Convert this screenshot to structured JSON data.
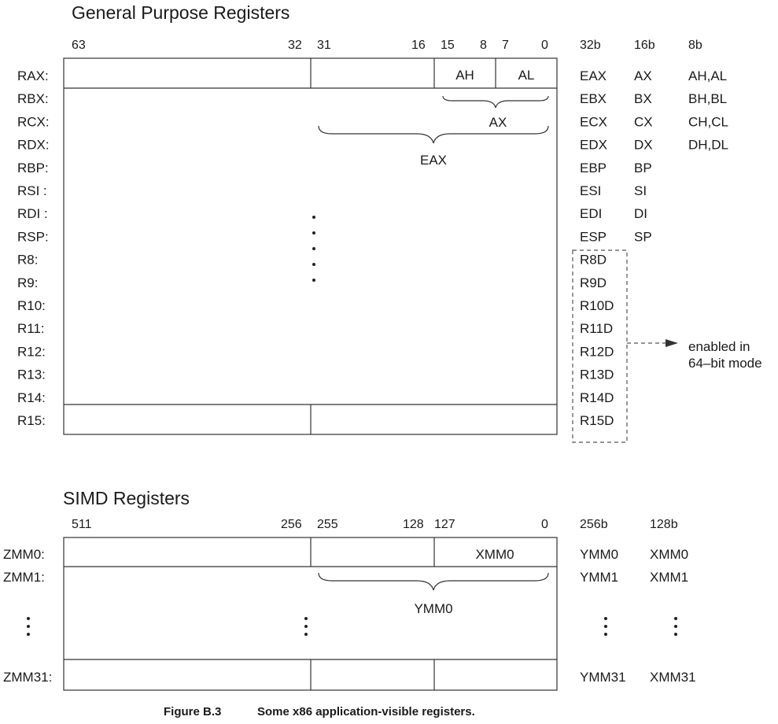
{
  "gpr": {
    "title": "General Purpose Registers",
    "bits": [
      "63",
      "32",
      "31",
      "16",
      "15",
      "8",
      "7",
      "0"
    ],
    "size_headers": [
      "32b",
      "16b",
      "8b"
    ],
    "registers": [
      "RAX:",
      "RBX:",
      "RCX:",
      "RDX:",
      "RBP:",
      "RSI :",
      "RDI :",
      "RSP:",
      "R8:",
      "R9:",
      "R10:",
      "R11:",
      "R12:",
      "R13:",
      "R14:",
      "R15:"
    ],
    "cells": {
      "high": "AH",
      "low": "AL"
    },
    "brace_labels": {
      "ax": "AX",
      "eax": "EAX"
    },
    "col32": [
      "EAX",
      "EBX",
      "ECX",
      "EDX",
      "EBP",
      "ESI",
      "EDI",
      "ESP",
      "R8D",
      "R9D",
      "R10D",
      "R11D",
      "R12D",
      "R13D",
      "R14D",
      "R15D"
    ],
    "col16": [
      "AX",
      "BX",
      "CX",
      "DX",
      "BP",
      "SI",
      "DI",
      "SP"
    ],
    "col8": [
      "AH,AL",
      "BH,BL",
      "CH,CL",
      "DH,DL"
    ],
    "note_line1": "enabled in",
    "note_line2": "64–bit mode"
  },
  "simd": {
    "title": "SIMD Registers",
    "bits": [
      "511",
      "256",
      "255",
      "128",
      "127",
      "0"
    ],
    "size_headers": [
      "256b",
      "128b"
    ],
    "registers": [
      "ZMM0:",
      "ZMM1:",
      "ZMM31:"
    ],
    "cell_xmm": "XMM0",
    "brace_label": "YMM0",
    "col256": [
      "YMM0",
      "YMM1",
      "YMM31"
    ],
    "col128": [
      "XMM0",
      "XMM1",
      "XMM31"
    ]
  },
  "caption": {
    "figure": "Figure B.3",
    "text": "Some x86 application-visible registers."
  }
}
